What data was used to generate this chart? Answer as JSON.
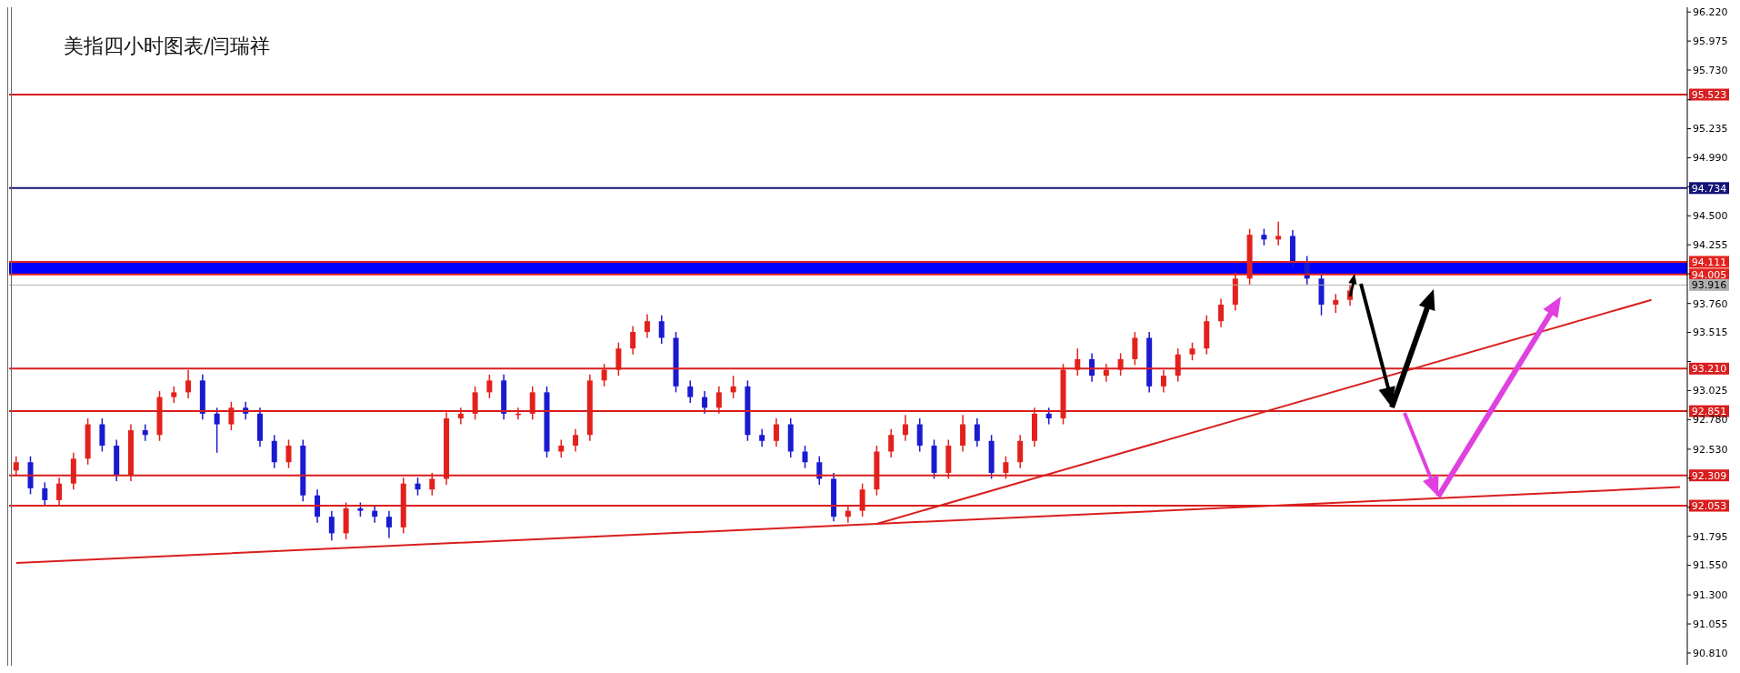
{
  "chart_data": {
    "type": "candlestick",
    "title": "美指四小时图表/闫瑞祥",
    "categories": [
      null,
      null,
      null,
      null,
      null,
      null,
      null,
      null,
      null,
      null,
      null,
      null,
      null,
      null,
      null,
      null,
      null,
      null,
      null,
      null,
      null,
      null,
      null,
      null,
      null,
      null,
      null,
      null,
      null,
      null,
      null,
      null,
      null,
      null,
      null,
      null,
      null,
      null,
      null,
      null,
      null,
      null,
      null,
      null,
      null,
      null,
      null,
      null,
      null,
      null,
      null,
      null,
      null,
      null,
      null,
      null,
      null,
      null,
      null,
      null,
      null,
      null,
      null,
      null,
      null,
      null,
      null,
      null,
      null,
      null,
      null,
      null,
      null,
      null,
      null,
      null,
      null,
      null,
      null,
      null,
      null,
      null,
      null,
      null,
      null,
      null,
      null,
      null,
      null,
      null,
      null,
      null,
      null,
      null,
      null,
      null,
      null,
      null,
      null,
      null,
      null,
      null,
      null,
      null,
      null,
      null,
      null,
      null,
      null,
      null,
      null,
      null,
      null,
      null,
      null,
      null,
      null
    ],
    "ohlc": [
      [
        92.35,
        92.47,
        92.3,
        92.42
      ],
      [
        92.42,
        92.47,
        92.15,
        92.2
      ],
      [
        92.2,
        92.25,
        92.05,
        92.1
      ],
      [
        92.1,
        92.29,
        92.05,
        92.24
      ],
      [
        92.24,
        92.5,
        92.19,
        92.45
      ],
      [
        92.45,
        92.79,
        92.4,
        92.74
      ],
      [
        92.74,
        92.79,
        92.51,
        92.56
      ],
      [
        92.56,
        92.61,
        92.26,
        92.31
      ],
      [
        92.31,
        92.74,
        92.26,
        92.69
      ],
      [
        92.69,
        92.74,
        92.6,
        92.65
      ],
      [
        92.65,
        93.02,
        92.6,
        92.97
      ],
      [
        92.97,
        93.06,
        92.92,
        93.01
      ],
      [
        93.01,
        93.2,
        92.96,
        93.11
      ],
      [
        93.11,
        93.16,
        92.78,
        92.83
      ],
      [
        92.83,
        92.88,
        92.5,
        92.74
      ],
      [
        92.74,
        92.93,
        92.69,
        92.88
      ],
      [
        92.88,
        92.93,
        92.78,
        92.83
      ],
      [
        92.83,
        92.88,
        92.55,
        92.6
      ],
      [
        92.6,
        92.65,
        92.37,
        92.42
      ],
      [
        92.42,
        92.61,
        92.37,
        92.56
      ],
      [
        92.56,
        92.61,
        92.09,
        92.14
      ],
      [
        92.14,
        92.19,
        91.91,
        91.96
      ],
      [
        91.96,
        92.01,
        91.76,
        91.82
      ],
      [
        91.82,
        92.08,
        91.77,
        92.03
      ],
      [
        92.03,
        92.08,
        91.96,
        92.01
      ],
      [
        92.01,
        92.06,
        91.91,
        91.96
      ],
      [
        91.96,
        92.01,
        91.78,
        91.87
      ],
      [
        91.87,
        92.29,
        91.82,
        92.24
      ],
      [
        92.24,
        92.29,
        92.14,
        92.19
      ],
      [
        92.19,
        92.33,
        92.14,
        92.28
      ],
      [
        92.28,
        92.84,
        92.23,
        92.79
      ],
      [
        92.79,
        92.88,
        92.74,
        92.83
      ],
      [
        92.83,
        93.06,
        92.78,
        93.01
      ],
      [
        93.01,
        93.16,
        92.96,
        93.11
      ],
      [
        93.11,
        93.16,
        92.78,
        92.83
      ],
      [
        92.83,
        92.88,
        92.78,
        92.83
      ],
      [
        92.83,
        93.06,
        92.78,
        93.01
      ],
      [
        93.01,
        93.06,
        92.46,
        92.51
      ],
      [
        92.51,
        92.61,
        92.46,
        92.56
      ],
      [
        92.56,
        92.7,
        92.51,
        92.65
      ],
      [
        92.65,
        93.16,
        92.6,
        93.11
      ],
      [
        93.11,
        93.25,
        93.06,
        93.2
      ],
      [
        93.2,
        93.43,
        93.15,
        93.38
      ],
      [
        93.38,
        93.57,
        93.33,
        93.52
      ],
      [
        93.52,
        93.67,
        93.47,
        93.61
      ],
      [
        93.61,
        93.66,
        93.42,
        93.47
      ],
      [
        93.47,
        93.52,
        93.01,
        93.06
      ],
      [
        93.06,
        93.11,
        92.92,
        92.97
      ],
      [
        92.97,
        93.02,
        92.83,
        92.88
      ],
      [
        92.88,
        93.06,
        92.83,
        93.01
      ],
      [
        93.01,
        93.15,
        92.96,
        93.06
      ],
      [
        93.06,
        93.11,
        92.6,
        92.65
      ],
      [
        92.65,
        92.7,
        92.55,
        92.6
      ],
      [
        92.6,
        92.79,
        92.55,
        92.74
      ],
      [
        92.74,
        92.79,
        92.46,
        92.51
      ],
      [
        92.51,
        92.56,
        92.37,
        92.42
      ],
      [
        92.42,
        92.47,
        92.23,
        92.28
      ],
      [
        92.28,
        92.33,
        91.92,
        91.96
      ],
      [
        91.96,
        92.06,
        91.91,
        92.01
      ],
      [
        92.01,
        92.24,
        91.96,
        92.19
      ],
      [
        92.19,
        92.56,
        92.14,
        92.51
      ],
      [
        92.51,
        92.7,
        92.46,
        92.65
      ],
      [
        92.65,
        92.82,
        92.6,
        92.74
      ],
      [
        92.74,
        92.79,
        92.51,
        92.56
      ],
      [
        92.56,
        92.61,
        92.28,
        92.33
      ],
      [
        92.33,
        92.61,
        92.28,
        92.56
      ],
      [
        92.56,
        92.82,
        92.51,
        92.74
      ],
      [
        92.74,
        92.79,
        92.55,
        92.6
      ],
      [
        92.6,
        92.65,
        92.28,
        92.33
      ],
      [
        92.33,
        92.47,
        92.28,
        92.42
      ],
      [
        92.42,
        92.65,
        92.37,
        92.6
      ],
      [
        92.6,
        92.88,
        92.55,
        92.83
      ],
      [
        92.83,
        92.88,
        92.74,
        92.79
      ],
      [
        92.79,
        93.25,
        92.74,
        93.2
      ],
      [
        93.2,
        93.38,
        93.15,
        93.29
      ],
      [
        93.29,
        93.34,
        93.1,
        93.15
      ],
      [
        93.15,
        93.25,
        93.1,
        93.2
      ],
      [
        93.2,
        93.34,
        93.15,
        93.29
      ],
      [
        93.29,
        93.52,
        93.24,
        93.47
      ],
      [
        93.47,
        93.52,
        93.01,
        93.06
      ],
      [
        93.06,
        93.2,
        93.01,
        93.15
      ],
      [
        93.15,
        93.38,
        93.1,
        93.33
      ],
      [
        93.33,
        93.43,
        93.28,
        93.38
      ],
      [
        93.38,
        93.66,
        93.33,
        93.61
      ],
      [
        93.61,
        93.8,
        93.56,
        93.75
      ],
      [
        93.75,
        94.02,
        93.7,
        93.97
      ],
      [
        93.97,
        94.39,
        93.92,
        94.34
      ],
      [
        94.34,
        94.39,
        94.25,
        94.3
      ],
      [
        94.3,
        94.45,
        94.25,
        94.33
      ],
      [
        94.33,
        94.38,
        94.06,
        94.11
      ],
      [
        94.11,
        94.16,
        93.92,
        93.97
      ],
      [
        93.97,
        94.02,
        93.66,
        93.75
      ],
      [
        93.75,
        93.84,
        93.68,
        93.79
      ],
      [
        93.79,
        93.92,
        93.74,
        93.87
      ],
      null,
      null,
      null,
      null,
      null,
      null,
      null,
      null,
      null,
      null,
      null,
      null,
      null,
      null,
      null,
      null,
      null,
      null,
      null,
      null,
      null,
      null,
      null
    ],
    "colors": [
      "#e3211c",
      "#1a1ad0",
      "#1a1ad0",
      "#e3211c",
      "#e3211c",
      "#e3211c",
      "#1a1ad0",
      "#1a1ad0",
      "#e3211c",
      "#1a1ad0",
      "#e3211c",
      "#e3211c",
      "#e3211c",
      "#1a1ad0",
      "#1a1ad0",
      "#e3211c",
      "#1a1ad0",
      "#1a1ad0",
      "#1a1ad0",
      "#e3211c",
      "#1a1ad0",
      "#1a1ad0",
      "#1a1ad0",
      "#e3211c",
      "#1a1ad0",
      "#1a1ad0",
      "#1a1ad0",
      "#e3211c",
      "#1a1ad0",
      "#e3211c",
      "#e3211c",
      "#e3211c",
      "#e3211c",
      "#e3211c",
      "#1a1ad0",
      "#e3211c",
      "#e3211c",
      "#1a1ad0",
      "#e3211c",
      "#e3211c",
      "#e3211c",
      "#e3211c",
      "#e3211c",
      "#e3211c",
      "#e3211c",
      "#1a1ad0",
      "#1a1ad0",
      "#1a1ad0",
      "#1a1ad0",
      "#e3211c",
      "#e3211c",
      "#1a1ad0",
      "#1a1ad0",
      "#e3211c",
      "#1a1ad0",
      "#1a1ad0",
      "#1a1ad0",
      "#1a1ad0",
      "#e3211c",
      "#e3211c",
      "#e3211c",
      "#e3211c",
      "#e3211c",
      "#1a1ad0",
      "#1a1ad0",
      "#e3211c",
      "#e3211c",
      "#1a1ad0",
      "#1a1ad0",
      "#e3211c",
      "#e3211c",
      "#e3211c",
      "#1a1ad0",
      "#e3211c",
      "#e3211c",
      "#1a1ad0",
      "#e3211c",
      "#e3211c",
      "#e3211c",
      "#1a1ad0",
      "#e3211c",
      "#e3211c",
      "#e3211c",
      "#e3211c",
      "#e3211c",
      "#e3211c",
      "#e3211c",
      "#1a1ad0",
      "#e3211c",
      "#1a1ad0",
      "#1a1ad0",
      "#1a1ad0",
      "#e3211c",
      "#e3211c",
      null,
      null,
      null,
      null,
      null,
      null,
      null,
      null,
      null,
      null,
      null,
      null,
      null,
      null,
      null,
      null,
      null,
      null,
      null,
      null,
      null,
      null,
      null
    ],
    "series": [
      {
        "type": "line",
        "color": "#d91e1e",
        "values": [
          91.57,
          null,
          null,
          null,
          null,
          null,
          null,
          null,
          null,
          null,
          null,
          null,
          null,
          null,
          null,
          null,
          null,
          null,
          null,
          null,
          null,
          null,
          null,
          null,
          null,
          null,
          null,
          null,
          null,
          null,
          null,
          null,
          null,
          null,
          null,
          null,
          null,
          null,
          null,
          null,
          null,
          null,
          null,
          null,
          null,
          null,
          null,
          null,
          null,
          null,
          null,
          null,
          null,
          null,
          null,
          null,
          null,
          null,
          null,
          null,
          91.9,
          null,
          null,
          null,
          null,
          null,
          null,
          null,
          null,
          null,
          null,
          null,
          null,
          null,
          null,
          null,
          null,
          null,
          null,
          null,
          null,
          null,
          null,
          null,
          null,
          null,
          null,
          null,
          null,
          null,
          null,
          null,
          null,
          null,
          null,
          null,
          null,
          null,
          null,
          null,
          null,
          null,
          null,
          null,
          null,
          null,
          null,
          null,
          null,
          null,
          null,
          null,
          null,
          null,
          null,
          null,
          92.21
        ]
      },
      {
        "type": "line",
        "color": "#d91e1e",
        "values": [
          null,
          null,
          null,
          null,
          null,
          null,
          null,
          null,
          null,
          null,
          null,
          null,
          null,
          null,
          null,
          null,
          null,
          null,
          null,
          null,
          null,
          null,
          null,
          null,
          null,
          null,
          null,
          null,
          null,
          null,
          null,
          null,
          null,
          null,
          null,
          null,
          null,
          null,
          null,
          null,
          null,
          null,
          null,
          null,
          null,
          null,
          null,
          null,
          null,
          null,
          null,
          null,
          null,
          null,
          null,
          null,
          null,
          null,
          null,
          null,
          91.9,
          null,
          null,
          null,
          null,
          null,
          null,
          null,
          null,
          null,
          null,
          null,
          null,
          null,
          null,
          null,
          null,
          null,
          null,
          null,
          null,
          null,
          null,
          null,
          null,
          null,
          null,
          null,
          null,
          null,
          null,
          null,
          null,
          null,
          null,
          null,
          null,
          null,
          null,
          null,
          null,
          null,
          null,
          null,
          null,
          null,
          null,
          null,
          null,
          null,
          null,
          null,
          null,
          null,
          93.79,
          null,
          null
        ]
      }
    ],
    "ylim": [
      90.71,
      96.26
    ],
    "yticks": [
      {
        "value": 96.22,
        "label": "96.220"
      },
      {
        "value": 95.975,
        "label": "95.975"
      },
      {
        "value": 95.73,
        "label": "95.730"
      },
      {
        "value": 95.48,
        "label": null
      },
      {
        "value": 95.235,
        "label": "95.235"
      },
      {
        "value": 94.99,
        "label": "94.990"
      },
      {
        "value": 94.745,
        "label": null
      },
      {
        "value": 94.5,
        "label": "94.500"
      },
      {
        "value": 94.255,
        "label": "94.255"
      },
      {
        "value": 94.01,
        "label": null
      },
      {
        "value": 93.76,
        "label": "93.760"
      },
      {
        "value": 93.515,
        "label": "93.515"
      },
      {
        "value": 93.27,
        "label": null
      },
      {
        "value": 93.025,
        "label": "93.025"
      },
      {
        "value": 92.78,
        "label": "92.780"
      },
      {
        "value": 92.53,
        "label": "92.530"
      },
      {
        "value": 92.285,
        "label": null
      },
      {
        "value": 92.04,
        "label": null
      },
      {
        "value": 91.795,
        "label": "91.795"
      },
      {
        "value": 91.55,
        "label": "91.550"
      },
      {
        "value": 91.3,
        "label": "91.300"
      },
      {
        "value": 91.055,
        "label": "91.055"
      },
      {
        "value": 90.81,
        "label": "90.810"
      }
    ],
    "ref_lines": [
      {
        "axis": "y",
        "value": 95.523,
        "label": "95.523",
        "color": "#d91e1e"
      },
      {
        "axis": "y",
        "value": 94.734,
        "label": "94.734",
        "color": "#14147a"
      },
      {
        "axis": "y",
        "value": 94.111,
        "label": "94.111",
        "color": "#e3211c"
      },
      {
        "axis": "y",
        "value": 94.005,
        "label": "94.005",
        "color": "#e3211c"
      },
      {
        "axis": "y",
        "value": 93.916,
        "label": "93.916",
        "color": "#b0b0b0"
      },
      {
        "axis": "y",
        "value": 93.21,
        "label": "93.210",
        "color": "#d91e1e"
      },
      {
        "axis": "y",
        "value": 92.851,
        "label": "92.851",
        "color": "#d91e1e"
      },
      {
        "axis": "y",
        "value": 92.309,
        "label": "92.309",
        "color": "#d91e1e"
      },
      {
        "axis": "y",
        "value": 92.053,
        "label": "92.053",
        "color": "#d91e1e"
      }
    ],
    "bands": [
      {
        "axis": "y",
        "from": 94.005,
        "to": 94.111,
        "color": "#0000ff"
      }
    ],
    "tick_labels": "y",
    "grid": false,
    "legend": false
  }
}
